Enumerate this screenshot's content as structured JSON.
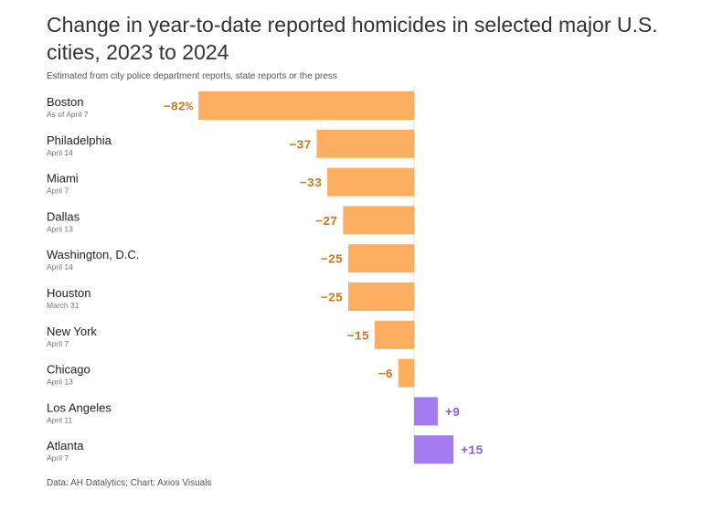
{
  "header": {
    "title": "Change in year-to-date reported homicides in selected major U.S. cities, 2023 to 2024",
    "subtitle": "Estimated from city police department reports, state reports or the press"
  },
  "footer": {
    "source": "Data: AH Datalytics; Chart: Axios Visuals"
  },
  "colors": {
    "negative": "#fdae61",
    "positive": "#a57cf0",
    "negative_label": "#c77a20",
    "positive_label": "#8a5ee0",
    "zero_line": "#e0e0e0"
  },
  "chart_data": {
    "type": "bar",
    "orientation": "horizontal",
    "title": "Change in year-to-date reported homicides in selected major U.S. cities, 2023 to 2024",
    "subtitle": "Estimated from city police department reports, state reports or the press",
    "unit": "percent change",
    "xlim": [
      -82,
      20
    ],
    "categories": [
      "Boston",
      "Philadelphia",
      "Miami",
      "Dallas",
      "Washington, D.C.",
      "Houston",
      "New York",
      "Chicago",
      "Los Angeles",
      "Atlanta"
    ],
    "dates": [
      "As of April 7",
      "April 14",
      "April 7",
      "April 13",
      "April 14",
      "March 31",
      "April 7",
      "April 13",
      "April 11",
      "April 7"
    ],
    "values": [
      -82,
      -37,
      -33,
      -27,
      -25,
      -25,
      -15,
      -6,
      9,
      15
    ],
    "labels": [
      "−82%",
      "−37",
      "−33",
      "−27",
      "−25",
      "−25",
      "−15",
      "−6",
      "+9",
      "+15"
    ]
  }
}
